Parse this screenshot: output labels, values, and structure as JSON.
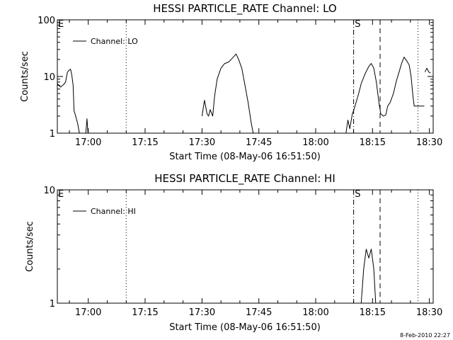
{
  "footer": {
    "timestamp": "8-Feb-2010 22:27"
  },
  "chart_data": [
    {
      "type": "line",
      "title": "HESSI PARTICLE_RATE Channel: LO",
      "xlabel": "Start Time (08-May-06 16:51:50)",
      "ylabel": "Counts/sec",
      "yscale": "log",
      "ylim": [
        1,
        100
      ],
      "y_tick_labels": [
        "1",
        "10",
        "100"
      ],
      "xlim": [
        "16:51:50",
        "18:31:00"
      ],
      "x_tick_labels": [
        "17:00",
        "17:15",
        "17:30",
        "17:45",
        "18:00",
        "18:15",
        "18:30"
      ],
      "legend": {
        "position": "top-left",
        "entries": [
          "Channel: LO"
        ]
      },
      "flags": [
        {
          "label": "E",
          "x": "16:51:50"
        },
        {
          "label": "S",
          "x": "18:10:30"
        }
      ],
      "vertical_markers": [
        {
          "x": "17:10:00",
          "style": "dotted"
        },
        {
          "x": "18:10:00",
          "style": "dash-dot"
        },
        {
          "x": "18:17:00",
          "style": "dashed"
        },
        {
          "x": "18:27:00",
          "style": "dotted"
        }
      ],
      "series": [
        {
          "name": "Channel: LO",
          "segments": [
            [
              [
                "16:51:50",
                7.5
              ],
              [
                "16:52:40",
                6.5
              ],
              [
                "16:53:30",
                7.2
              ],
              [
                "16:54:00",
                8.0
              ],
              [
                "16:54:30",
                12.0
              ],
              [
                "16:55:00",
                13.0
              ],
              [
                "16:55:20",
                13.5
              ],
              [
                "16:55:40",
                10.5
              ],
              [
                "16:56:00",
                7.0
              ],
              [
                "16:56:15",
                2.5
              ],
              [
                "16:56:40",
                2.0
              ],
              [
                "16:57:10",
                1.5
              ],
              [
                "16:57:40",
                1.0
              ]
            ],
            [
              [
                "16:59:20",
                1.0
              ],
              [
                "16:59:40",
                1.8
              ],
              [
                "16:59:55",
                1.0
              ]
            ],
            [
              [
                "17:30:00",
                2.0
              ],
              [
                "17:30:40",
                3.8
              ],
              [
                "17:31:20",
                2.2
              ],
              [
                "17:31:45",
                2.0
              ],
              [
                "17:32:10",
                2.6
              ],
              [
                "17:32:50",
                2.0
              ],
              [
                "17:33:20",
                4.5
              ],
              [
                "17:34:00",
                9.0
              ],
              [
                "17:35:00",
                14.0
              ],
              [
                "17:36:00",
                17.0
              ],
              [
                "17:37:00",
                18.0
              ],
              [
                "17:38:00",
                21.0
              ],
              [
                "17:39:00",
                25.0
              ],
              [
                "17:39:40",
                20.0
              ],
              [
                "17:40:30",
                14.0
              ],
              [
                "17:41:20",
                7.0
              ],
              [
                "17:42:10",
                3.5
              ],
              [
                "17:43:00",
                1.5
              ],
              [
                "17:43:30",
                1.0
              ]
            ],
            [
              [
                "18:08:00",
                1.0
              ],
              [
                "18:08:30",
                1.7
              ],
              [
                "18:09:00",
                1.2
              ],
              [
                "18:09:40",
                2.2
              ],
              [
                "18:10:00",
                2.5
              ],
              [
                "18:10:30",
                3.2
              ],
              [
                "18:11:20",
                5.0
              ],
              [
                "18:12:00",
                7.5
              ],
              [
                "18:13:00",
                11.0
              ],
              [
                "18:14:00",
                15.0
              ],
              [
                "18:14:40",
                17.0
              ],
              [
                "18:15:20",
                14.0
              ],
              [
                "18:16:00",
                8.0
              ],
              [
                "18:16:40",
                3.5
              ],
              [
                "18:17:10",
                2.2
              ],
              [
                "18:17:50",
                2.0
              ],
              [
                "18:18:30",
                2.1
              ],
              [
                "18:19:00",
                3.0
              ],
              [
                "18:19:40",
                3.5
              ],
              [
                "18:20:30",
                5.0
              ],
              [
                "18:21:20",
                8.5
              ],
              [
                "18:22:00",
                12.0
              ],
              [
                "18:22:40",
                17.0
              ],
              [
                "18:23:20",
                22.0
              ],
              [
                "18:24:00",
                19.0
              ],
              [
                "18:24:40",
                16.0
              ],
              [
                "18:25:10",
                10.0
              ],
              [
                "18:25:40",
                4.5
              ],
              [
                "18:26:00",
                3.0
              ],
              [
                "18:27:10",
                3.0
              ],
              [
                "18:27:50",
                3.0
              ],
              [
                "18:28:40",
                3.0
              ]
            ],
            [
              [
                "18:28:50",
                12.0
              ],
              [
                "18:29:20",
                14.0
              ],
              [
                "18:29:50",
                12.0
              ],
              [
                "18:30:20",
                11.5
              ]
            ]
          ]
        }
      ]
    },
    {
      "type": "line",
      "title": "HESSI PARTICLE_RATE Channel: HI",
      "xlabel": "Start Time (08-May-06 16:51:50)",
      "ylabel": "Counts/sec",
      "yscale": "log",
      "ylim": [
        1,
        10
      ],
      "y_tick_labels": [
        "1",
        "10"
      ],
      "xlim": [
        "16:51:50",
        "18:31:00"
      ],
      "x_tick_labels": [
        "17:00",
        "17:15",
        "17:30",
        "17:45",
        "18:00",
        "18:15",
        "18:30"
      ],
      "legend": {
        "position": "top-left",
        "entries": [
          "Channel: HI"
        ]
      },
      "flags": [
        {
          "label": "E",
          "x": "16:51:50"
        },
        {
          "label": "S",
          "x": "18:10:30"
        }
      ],
      "vertical_markers": [
        {
          "x": "17:10:00",
          "style": "dotted"
        },
        {
          "x": "18:10:00",
          "style": "dash-dot"
        },
        {
          "x": "18:17:00",
          "style": "dashed"
        },
        {
          "x": "18:27:00",
          "style": "dotted"
        }
      ],
      "series": [
        {
          "name": "Channel: HI",
          "segments": [
            [
              [
                "18:12:00",
                1.0
              ],
              [
                "18:12:40",
                2.0
              ],
              [
                "18:13:20",
                3.0
              ],
              [
                "18:14:00",
                2.5
              ],
              [
                "18:14:40",
                3.0
              ],
              [
                "18:15:20",
                2.0
              ],
              [
                "18:15:50",
                1.0
              ]
            ]
          ]
        }
      ]
    }
  ]
}
